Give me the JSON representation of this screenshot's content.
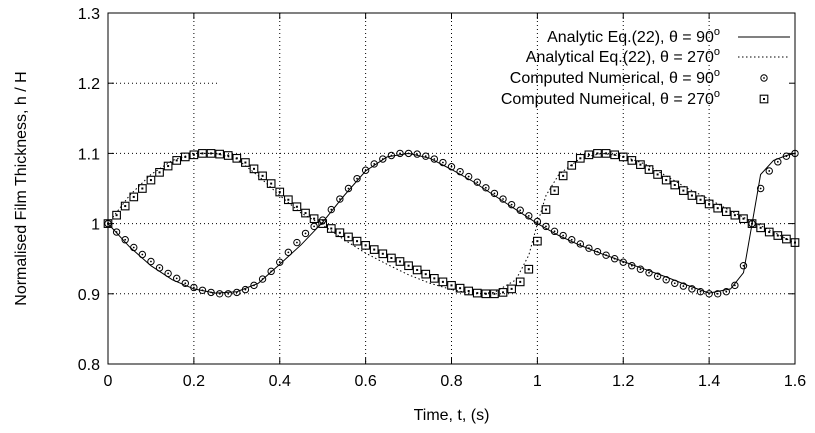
{
  "chart_data": {
    "type": "line",
    "title": "",
    "xlabel": "Time, t, (s)",
    "ylabel": "Normalised Film Thickness, h / H",
    "xlim": [
      0,
      1.6
    ],
    "ylim": [
      0.8,
      1.3
    ],
    "x_ticks": [
      "0",
      "0.2",
      "0.4",
      "0.6",
      "0.8",
      "1",
      "1.2",
      "1.4",
      "1.6"
    ],
    "y_ticks": [
      "0.8",
      "0.9",
      "1",
      "1.1",
      "1.2",
      "1.3"
    ],
    "grid": true,
    "legend_position": "top-right",
    "series": [
      {
        "name": "Analytic Eq.(22), θ = 90",
        "name_superscript": "o",
        "style": "solid",
        "x": [
          0,
          0.05,
          0.1,
          0.15,
          0.2,
          0.25,
          0.3,
          0.35,
          0.4,
          0.45,
          0.5,
          0.55,
          0.6,
          0.65,
          0.7,
          0.75,
          0.8,
          0.85,
          0.9,
          0.95,
          1.0,
          1.05,
          1.1,
          1.15,
          1.2,
          1.25,
          1.3,
          1.35,
          1.4,
          1.45,
          1.48,
          1.5,
          1.52,
          1.55,
          1.58,
          1.6
        ],
        "y": [
          1.0,
          0.967,
          0.94,
          0.92,
          0.907,
          0.901,
          0.903,
          0.915,
          0.942,
          0.97,
          1.002,
          1.04,
          1.075,
          1.095,
          1.1,
          1.093,
          1.077,
          1.06,
          1.04,
          1.02,
          1.0,
          0.983,
          0.969,
          0.957,
          0.946,
          0.935,
          0.924,
          0.912,
          0.901,
          0.907,
          0.93,
          1.0,
          1.07,
          1.09,
          1.097,
          1.1
        ]
      },
      {
        "name": "Analytical Eq.(22), θ = 270",
        "name_superscript": "o",
        "style": "dotted",
        "x": [
          0,
          0.05,
          0.1,
          0.15,
          0.2,
          0.25,
          0.3,
          0.35,
          0.4,
          0.45,
          0.5,
          0.55,
          0.6,
          0.65,
          0.7,
          0.75,
          0.8,
          0.85,
          0.9,
          0.95,
          0.98,
          1.0,
          1.02,
          1.05,
          1.1,
          1.15,
          1.2,
          1.25,
          1.3,
          1.35,
          1.4,
          1.45,
          1.5,
          1.55,
          1.6
        ],
        "y": [
          1.0,
          1.04,
          1.07,
          1.09,
          1.1,
          1.1,
          1.092,
          1.068,
          1.04,
          1.015,
          0.998,
          0.977,
          0.958,
          0.942,
          0.927,
          0.915,
          0.906,
          0.9,
          0.902,
          0.92,
          0.955,
          1.0,
          1.04,
          1.07,
          1.093,
          1.1,
          1.096,
          1.085,
          1.068,
          1.05,
          1.035,
          1.018,
          1.003,
          0.988,
          0.972
        ]
      },
      {
        "name": "Computed Numerical, θ = 90",
        "name_superscript": "o",
        "style": "circle",
        "x": [
          0,
          0.02,
          0.04,
          0.06,
          0.08,
          0.1,
          0.12,
          0.14,
          0.16,
          0.18,
          0.2,
          0.22,
          0.24,
          0.26,
          0.28,
          0.3,
          0.32,
          0.34,
          0.36,
          0.38,
          0.4,
          0.42,
          0.44,
          0.46,
          0.48,
          0.5,
          0.52,
          0.54,
          0.56,
          0.58,
          0.6,
          0.62,
          0.64,
          0.66,
          0.68,
          0.7,
          0.72,
          0.74,
          0.76,
          0.78,
          0.8,
          0.82,
          0.84,
          0.86,
          0.88,
          0.9,
          0.92,
          0.94,
          0.96,
          0.98,
          1.0,
          1.02,
          1.04,
          1.06,
          1.08,
          1.1,
          1.12,
          1.14,
          1.16,
          1.18,
          1.2,
          1.22,
          1.24,
          1.26,
          1.28,
          1.3,
          1.32,
          1.34,
          1.36,
          1.38,
          1.4,
          1.42,
          1.44,
          1.46,
          1.48,
          1.5,
          1.52,
          1.54,
          1.56,
          1.58,
          1.6
        ],
        "y": [
          1.0,
          0.988,
          0.977,
          0.966,
          0.956,
          0.946,
          0.937,
          0.929,
          0.922,
          0.915,
          0.909,
          0.905,
          0.902,
          0.9,
          0.9,
          0.902,
          0.906,
          0.912,
          0.921,
          0.932,
          0.945,
          0.959,
          0.973,
          0.986,
          0.996,
          1.005,
          1.02,
          1.035,
          1.05,
          1.064,
          1.076,
          1.085,
          1.092,
          1.097,
          1.1,
          1.1,
          1.099,
          1.096,
          1.092,
          1.087,
          1.081,
          1.074,
          1.067,
          1.059,
          1.051,
          1.043,
          1.035,
          1.027,
          1.019,
          1.011,
          1.003,
          0.996,
          0.989,
          0.983,
          0.977,
          0.971,
          0.965,
          0.96,
          0.955,
          0.95,
          0.945,
          0.94,
          0.935,
          0.93,
          0.925,
          0.92,
          0.915,
          0.911,
          0.907,
          0.903,
          0.9,
          0.9,
          0.903,
          0.912,
          0.94,
          1.0,
          1.05,
          1.075,
          1.088,
          1.096,
          1.1
        ]
      },
      {
        "name": "Computed Numerical, θ = 270",
        "name_superscript": "o",
        "style": "square",
        "x": [
          0,
          0.02,
          0.04,
          0.06,
          0.08,
          0.1,
          0.12,
          0.14,
          0.16,
          0.18,
          0.2,
          0.22,
          0.24,
          0.26,
          0.28,
          0.3,
          0.32,
          0.34,
          0.36,
          0.38,
          0.4,
          0.42,
          0.44,
          0.46,
          0.48,
          0.5,
          0.52,
          0.54,
          0.56,
          0.58,
          0.6,
          0.62,
          0.64,
          0.66,
          0.68,
          0.7,
          0.72,
          0.74,
          0.76,
          0.78,
          0.8,
          0.82,
          0.84,
          0.86,
          0.88,
          0.9,
          0.92,
          0.94,
          0.96,
          0.98,
          1.0,
          1.02,
          1.04,
          1.06,
          1.08,
          1.1,
          1.12,
          1.14,
          1.16,
          1.18,
          1.2,
          1.22,
          1.24,
          1.26,
          1.28,
          1.3,
          1.32,
          1.34,
          1.36,
          1.38,
          1.4,
          1.42,
          1.44,
          1.46,
          1.48,
          1.5,
          1.52,
          1.54,
          1.56,
          1.58,
          1.6
        ],
        "y": [
          1.0,
          1.012,
          1.025,
          1.038,
          1.05,
          1.062,
          1.073,
          1.082,
          1.09,
          1.095,
          1.098,
          1.1,
          1.1,
          1.099,
          1.097,
          1.093,
          1.087,
          1.078,
          1.068,
          1.057,
          1.045,
          1.034,
          1.024,
          1.015,
          1.007,
          1.0,
          0.993,
          0.987,
          0.981,
          0.975,
          0.969,
          0.963,
          0.957,
          0.951,
          0.946,
          0.94,
          0.934,
          0.928,
          0.922,
          0.917,
          0.912,
          0.908,
          0.904,
          0.901,
          0.9,
          0.9,
          0.902,
          0.907,
          0.917,
          0.935,
          0.975,
          1.02,
          1.047,
          1.068,
          1.083,
          1.093,
          1.098,
          1.1,
          1.1,
          1.098,
          1.095,
          1.09,
          1.084,
          1.077,
          1.07,
          1.062,
          1.055,
          1.047,
          1.04,
          1.034,
          1.028,
          1.022,
          1.017,
          1.012,
          1.007,
          1.0,
          0.994,
          0.988,
          0.983,
          0.978,
          0.973
        ]
      }
    ]
  }
}
